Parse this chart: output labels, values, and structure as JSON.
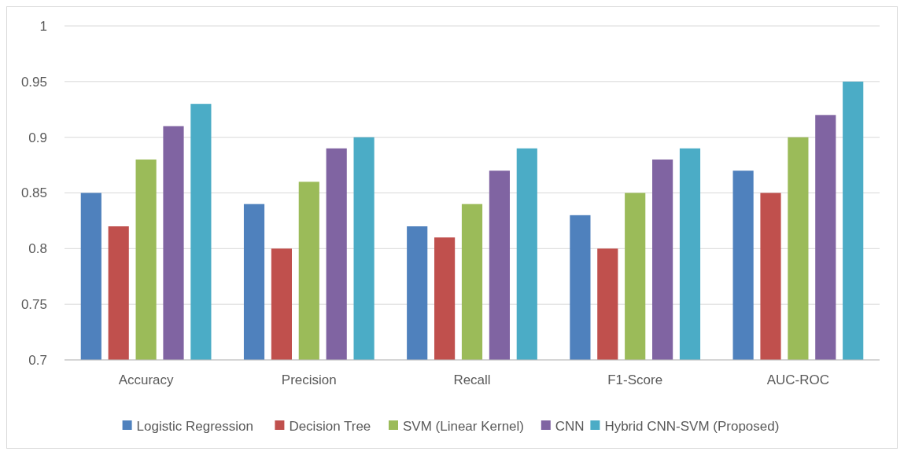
{
  "chart_data": {
    "type": "bar",
    "categories": [
      "Accuracy",
      "Precision",
      "Recall",
      "F1-Score",
      "AUC-ROC"
    ],
    "series": [
      {
        "name": "Logistic Regression",
        "color": "#4f81bd",
        "values": [
          0.85,
          0.84,
          0.82,
          0.83,
          0.87
        ]
      },
      {
        "name": "Decision Tree",
        "color": "#c0504d",
        "values": [
          0.82,
          0.8,
          0.81,
          0.8,
          0.85
        ]
      },
      {
        "name": "SVM (Linear Kernel)",
        "color": "#9bbb59",
        "values": [
          0.88,
          0.86,
          0.84,
          0.85,
          0.9
        ]
      },
      {
        "name": "CNN",
        "color": "#8064a2",
        "values": [
          0.91,
          0.89,
          0.87,
          0.88,
          0.92
        ]
      },
      {
        "name": "Hybrid CNN-SVM (Proposed)",
        "color": "#4bacc6",
        "values": [
          0.93,
          0.9,
          0.89,
          0.89,
          0.95
        ]
      }
    ],
    "ylim": [
      0.7,
      1
    ],
    "yticks": [
      0.7,
      0.75,
      0.8,
      0.85,
      0.9,
      0.95,
      1
    ],
    "grid": "y",
    "legend": "bottom"
  }
}
